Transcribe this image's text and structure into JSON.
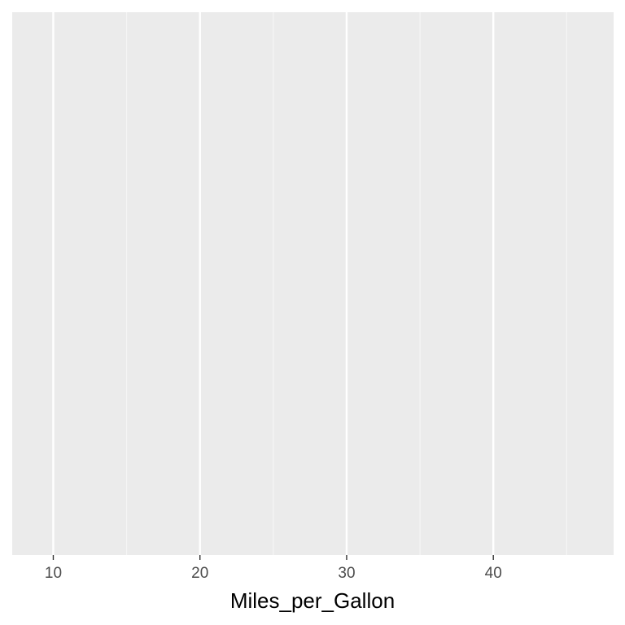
{
  "chart_data": {
    "type": "scatter",
    "x": [],
    "y": [],
    "xlabel": "Miles_per_Gallon",
    "ylabel": "",
    "xlim": [
      7.2,
      48.2
    ],
    "x_major_ticks": [
      10,
      20,
      30,
      40
    ],
    "x_minor_ticks": [
      15,
      25,
      35,
      45
    ],
    "x_tick_labels": [
      "10",
      "20",
      "30",
      "40"
    ],
    "grid": true,
    "legend": "none"
  },
  "colors": {
    "panel_background": "#EBEBEB",
    "grid_major": "#FFFFFF",
    "grid_minor": "#F5F5F5",
    "tick_mark": "#333333",
    "tick_label": "#4D4D4D",
    "axis_title": "#000000"
  }
}
